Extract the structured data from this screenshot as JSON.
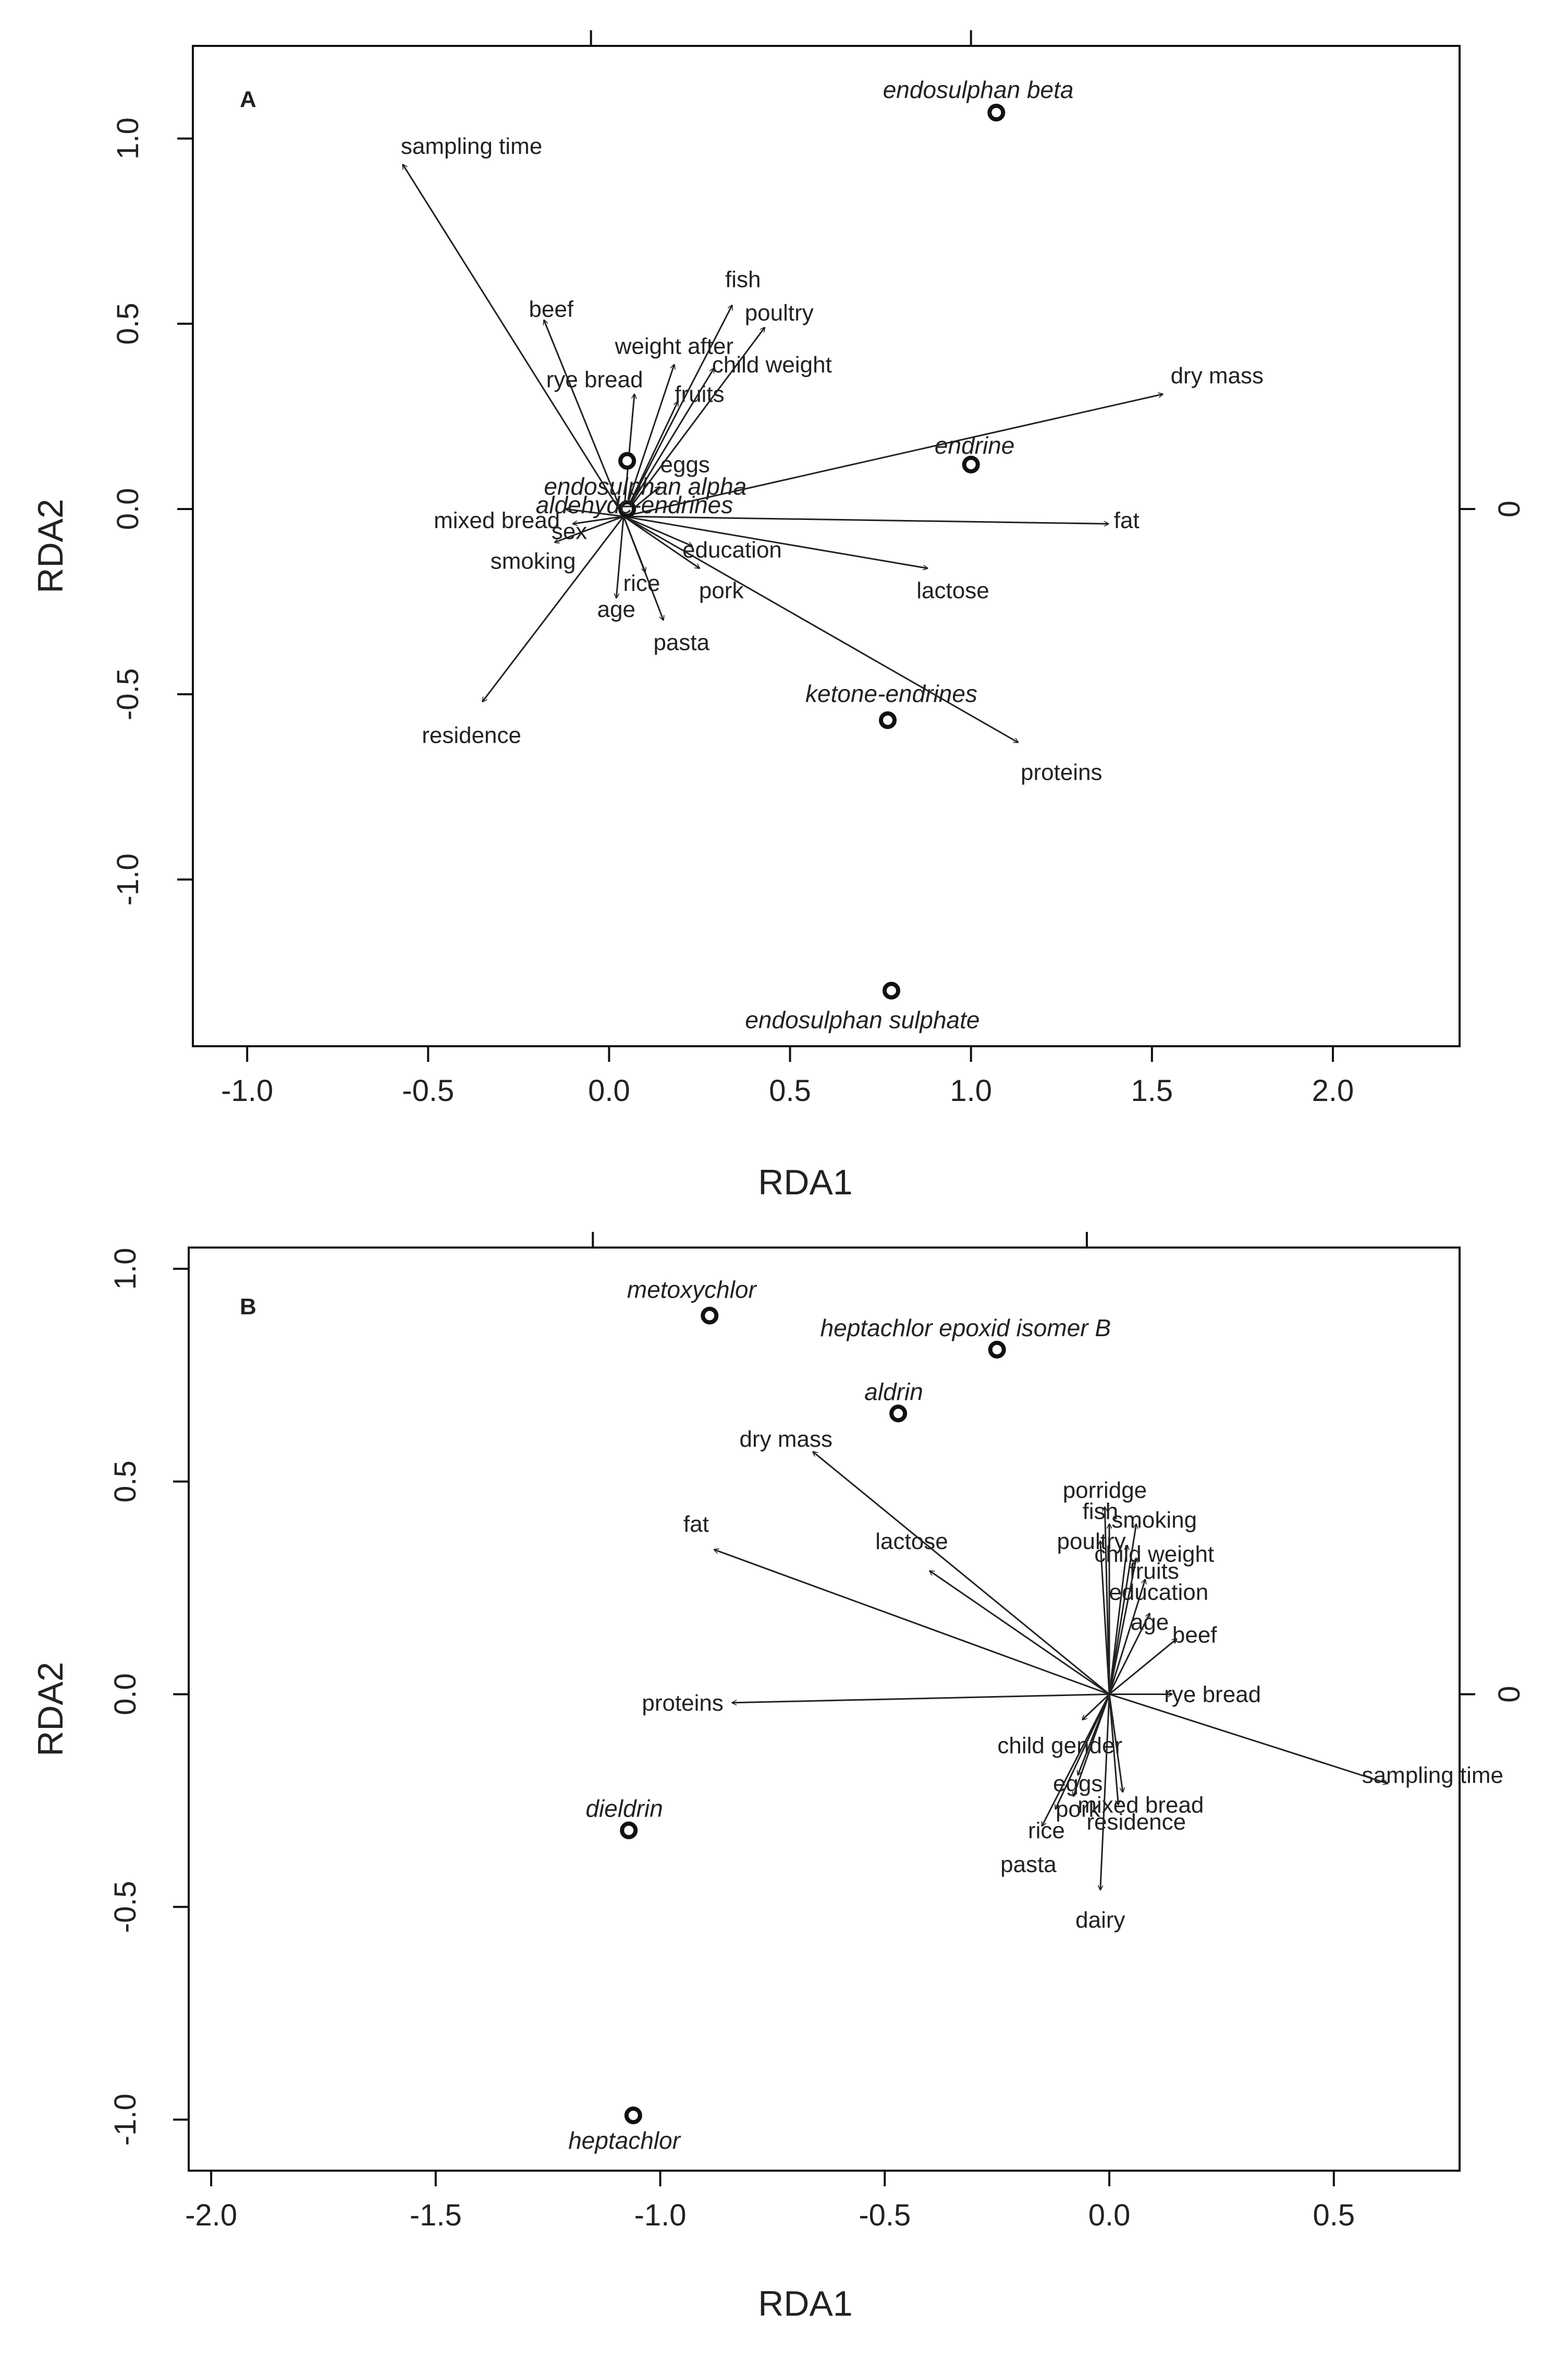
{
  "chart_data": [
    {
      "type": "scatter",
      "panel": "A",
      "xlabel": "RDA1",
      "ylabel": "RDA2",
      "xlim": [
        -1.15,
        2.35
      ],
      "ylim": [
        -1.45,
        1.25
      ],
      "xticks": [
        "-1.0",
        "-0.5",
        "0.0",
        "0.5",
        "1.0",
        "1.5",
        "2.0"
      ],
      "xtick_values": [
        -1.0,
        -0.5,
        0.0,
        0.5,
        1.0,
        1.5,
        2.0
      ],
      "yticks": [
        "-1.0",
        "-0.5",
        "0.0",
        "0.5",
        "1.0"
      ],
      "ytick_values": [
        -1.0,
        -0.5,
        0.0,
        0.5,
        1.0
      ],
      "right_axis_label": "0",
      "origin": [
        0.04,
        -0.02
      ],
      "vectors": [
        {
          "name": "sampling time",
          "x": -0.57,
          "y": 0.93,
          "lx": -0.38,
          "ly": 0.98
        },
        {
          "name": "beef",
          "x": -0.18,
          "y": 0.51,
          "lx": -0.16,
          "ly": 0.54
        },
        {
          "name": "rye bread",
          "x": 0.07,
          "y": 0.31,
          "lx": -0.04,
          "ly": 0.35
        },
        {
          "name": "weight after",
          "x": 0.18,
          "y": 0.39,
          "lx": 0.18,
          "ly": 0.44
        },
        {
          "name": "fish",
          "x": 0.34,
          "y": 0.55,
          "lx": 0.37,
          "ly": 0.62
        },
        {
          "name": "poultry",
          "x": 0.43,
          "y": 0.49,
          "lx": 0.47,
          "ly": 0.53
        },
        {
          "name": "child weight",
          "x": 0.29,
          "y": 0.38,
          "lx": 0.45,
          "ly": 0.39
        },
        {
          "name": "fruits",
          "x": 0.19,
          "y": 0.29,
          "lx": 0.25,
          "ly": 0.31
        },
        {
          "name": "dry mass",
          "x": 1.53,
          "y": 0.31,
          "lx": 1.68,
          "ly": 0.36
        },
        {
          "name": "fat",
          "x": 1.38,
          "y": -0.04,
          "lx": 1.43,
          "ly": -0.03
        },
        {
          "name": "lactose",
          "x": 0.88,
          "y": -0.16,
          "lx": 0.95,
          "ly": -0.22
        },
        {
          "name": "proteins",
          "x": 1.13,
          "y": -0.63,
          "lx": 1.25,
          "ly": -0.71
        },
        {
          "name": "education",
          "x": 0.23,
          "y": -0.1,
          "lx": 0.34,
          "ly": -0.11
        },
        {
          "name": "pork",
          "x": 0.25,
          "y": -0.16,
          "lx": 0.31,
          "ly": -0.22
        },
        {
          "name": "pasta",
          "x": 0.15,
          "y": -0.3,
          "lx": 0.2,
          "ly": -0.36
        },
        {
          "name": "rice",
          "x": 0.1,
          "y": -0.17,
          "lx": 0.09,
          "ly": -0.2
        },
        {
          "name": "age",
          "x": 0.02,
          "y": -0.24,
          "lx": 0.02,
          "ly": -0.27
        },
        {
          "name": "residence",
          "x": -0.35,
          "y": -0.52,
          "lx": -0.38,
          "ly": -0.61
        },
        {
          "name": "smoking",
          "x": -0.15,
          "y": -0.09,
          "lx": -0.21,
          "ly": -0.14
        },
        {
          "name": "sex",
          "x": -0.1,
          "y": -0.04,
          "lx": -0.11,
          "ly": -0.06
        },
        {
          "name": "mixed bread",
          "x": -0.12,
          "y": 0.0,
          "lx": -0.31,
          "ly": -0.03
        },
        {
          "name": "eggs",
          "x": 0.14,
          "y": 0.06,
          "lx": 0.21,
          "ly": 0.12
        }
      ],
      "sites": [
        {
          "name": "endosulphan beta",
          "x": 1.07,
          "y": 1.07,
          "lx": 1.02,
          "ly": 1.13
        },
        {
          "name": "endrine",
          "x": 1.0,
          "y": 0.12,
          "lx": 1.01,
          "ly": 0.17
        },
        {
          "name": "endosulphan alpha",
          "x": 0.05,
          "y": 0.13,
          "lx": 0.1,
          "ly": 0.06
        },
        {
          "name": "aldehyde-endrines",
          "x": 0.05,
          "y": 0.0,
          "lx": 0.07,
          "ly": 0.01
        },
        {
          "name": "ketone-endrines",
          "x": 0.77,
          "y": -0.57,
          "lx": 0.78,
          "ly": -0.5
        },
        {
          "name": "endosulphan sulphate",
          "x": 0.78,
          "y": -1.3,
          "lx": 0.7,
          "ly": -1.38
        }
      ]
    },
    {
      "type": "scatter",
      "panel": "B",
      "xlabel": "RDA1",
      "ylabel": "RDA2",
      "xlim": [
        -2.05,
        0.78
      ],
      "ylim": [
        -1.12,
        1.05
      ],
      "xticks": [
        "-2.0",
        "-1.5",
        "-1.0",
        "-0.5",
        "0.0",
        "0.5"
      ],
      "xtick_values": [
        -2.0,
        -1.5,
        -1.0,
        -0.5,
        0.0,
        0.5
      ],
      "yticks": [
        "-1.0",
        "-0.5",
        "0.0",
        "0.5",
        "1.0"
      ],
      "ytick_values": [
        -1.0,
        -0.5,
        0.0,
        0.5,
        1.0
      ],
      "right_axis_label": "0",
      "origin": [
        0.0,
        0.0
      ],
      "vectors": [
        {
          "name": "dry mass",
          "x": -0.66,
          "y": 0.57,
          "lx": -0.72,
          "ly": 0.6
        },
        {
          "name": "fat",
          "x": -0.88,
          "y": 0.34,
          "lx": -0.92,
          "ly": 0.4
        },
        {
          "name": "lactose",
          "x": -0.4,
          "y": 0.29,
          "lx": -0.44,
          "ly": 0.36
        },
        {
          "name": "proteins",
          "x": -0.84,
          "y": -0.02,
          "lx": -0.95,
          "ly": -0.02
        },
        {
          "name": "porridge",
          "x": -0.01,
          "y": 0.44,
          "lx": -0.01,
          "ly": 0.48
        },
        {
          "name": "fish",
          "x": 0.0,
          "y": 0.4,
          "lx": -0.02,
          "ly": 0.43
        },
        {
          "name": "smoking",
          "x": 0.06,
          "y": 0.4,
          "lx": 0.1,
          "ly": 0.41
        },
        {
          "name": "poultry",
          "x": -0.02,
          "y": 0.36,
          "lx": -0.04,
          "ly": 0.36
        },
        {
          "name": "child weight",
          "x": 0.04,
          "y": 0.35,
          "lx": 0.1,
          "ly": 0.33
        },
        {
          "name": "fruits",
          "x": 0.06,
          "y": 0.32,
          "lx": 0.1,
          "ly": 0.29
        },
        {
          "name": "education",
          "x": 0.08,
          "y": 0.27,
          "lx": 0.11,
          "ly": 0.24
        },
        {
          "name": "age",
          "x": 0.09,
          "y": 0.19,
          "lx": 0.09,
          "ly": 0.17
        },
        {
          "name": "beef",
          "x": 0.15,
          "y": 0.13,
          "lx": 0.19,
          "ly": 0.14
        },
        {
          "name": "rye bread",
          "x": 0.14,
          "y": 0.0,
          "lx": 0.23,
          "ly": 0.0
        },
        {
          "name": "sampling time",
          "x": 0.62,
          "y": -0.21,
          "lx": 0.72,
          "ly": -0.19
        },
        {
          "name": "child gender",
          "x": -0.06,
          "y": -0.06,
          "lx": -0.11,
          "ly": -0.12
        },
        {
          "name": "eggs",
          "x": -0.07,
          "y": -0.19,
          "lx": -0.07,
          "ly": -0.21
        },
        {
          "name": "pork",
          "x": -0.08,
          "y": -0.24,
          "lx": -0.07,
          "ly": -0.27
        },
        {
          "name": "rice",
          "x": -0.12,
          "y": -0.27,
          "lx": -0.14,
          "ly": -0.32
        },
        {
          "name": "mixed bread",
          "x": 0.03,
          "y": -0.23,
          "lx": 0.07,
          "ly": -0.26
        },
        {
          "name": "residence",
          "x": 0.02,
          "y": -0.26,
          "lx": 0.06,
          "ly": -0.3
        },
        {
          "name": "pasta",
          "x": -0.15,
          "y": -0.31,
          "lx": -0.18,
          "ly": -0.4
        },
        {
          "name": "dairy",
          "x": -0.02,
          "y": -0.46,
          "lx": -0.02,
          "ly": -0.53
        }
      ],
      "sites": [
        {
          "name": "metoxychlor",
          "x": -0.89,
          "y": 0.89,
          "lx": -0.93,
          "ly": 0.95
        },
        {
          "name": "heptachlor  epoxid  isomer  B",
          "x": -0.25,
          "y": 0.81,
          "lx": -0.32,
          "ly": 0.86
        },
        {
          "name": "aldrin",
          "x": -0.47,
          "y": 0.66,
          "lx": -0.48,
          "ly": 0.71
        },
        {
          "name": "dieldrin",
          "x": -1.07,
          "y": -0.32,
          "lx": -1.08,
          "ly": -0.27
        },
        {
          "name": "heptachlor",
          "x": -1.06,
          "y": -0.99,
          "lx": -1.08,
          "ly": -1.05
        }
      ]
    }
  ]
}
